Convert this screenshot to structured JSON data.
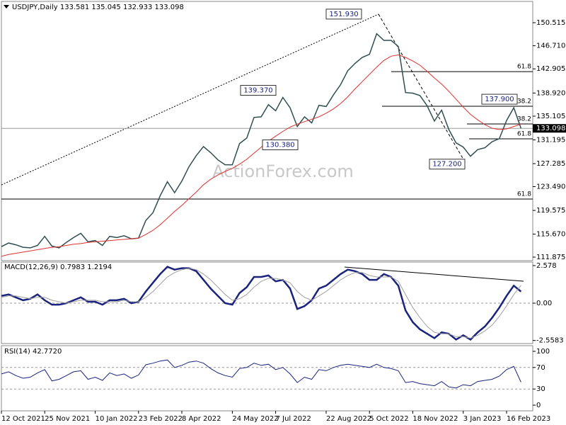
{
  "chart_data": [
    {
      "type": "line",
      "title": "USDJPY,Daily  133.581 135.045 132.933 133.098",
      "watermark": "ActionForex.com",
      "categories": [
        "12 Oct 2021",
        null,
        null,
        null,
        null,
        null,
        "25 Nov 2021",
        null,
        null,
        null,
        null,
        null,
        null,
        "10 Jan 2022",
        null,
        null,
        null,
        null,
        null,
        "23 Feb 2022",
        null,
        null,
        null,
        null,
        null,
        "8 Apr 2022",
        null,
        null,
        null,
        null,
        null,
        null,
        "24 May 2022",
        null,
        null,
        null,
        null,
        null,
        "7 Jul 2022",
        null,
        null,
        null,
        null,
        null,
        null,
        "22 Aug 2022",
        null,
        null,
        null,
        null,
        null,
        "5 Oct 2022",
        null,
        null,
        null,
        null,
        null,
        "18 Nov 2022",
        null,
        null,
        null,
        null,
        null,
        null,
        "3 Jan 2023",
        null,
        null,
        null,
        null,
        null,
        "16 Feb 2023",
        null,
        null
      ],
      "series": [
        {
          "name": "Close",
          "color": "#2f4f4f",
          "values": [
            113.6,
            114.2,
            113.9,
            113.5,
            113.4,
            113.8,
            115.3,
            113.7,
            113.4,
            114.3,
            115.1,
            115.8,
            114.4,
            114.6,
            113.8,
            115.3,
            115.1,
            115.4,
            114.9,
            115.0,
            117.9,
            119.2,
            122.0,
            124.3,
            122.5,
            124.4,
            126.8,
            128.6,
            130.1,
            129.1,
            127.9,
            127.1,
            127.1,
            130.6,
            131.5,
            134.9,
            135.0,
            137.0,
            136.0,
            138.2,
            136.5,
            133.4,
            135.0,
            134.0,
            136.9,
            136.7,
            138.6,
            140.3,
            142.6,
            143.8,
            144.8,
            145.3,
            148.7,
            147.6,
            147.6,
            146.6,
            139.0,
            138.9,
            138.5,
            136.8,
            134.3,
            136.1,
            132.9,
            130.7,
            130.0,
            128.5,
            129.6,
            129.9,
            130.9,
            131.4,
            134.4,
            136.5,
            133.098
          ]
        },
        {
          "name": "MA",
          "color": "#e03030",
          "values": [
            112.0,
            112.3,
            112.5,
            112.7,
            112.9,
            113.1,
            113.3,
            113.5,
            113.6,
            113.8,
            114.0,
            114.1,
            114.3,
            114.4,
            114.5,
            114.6,
            114.7,
            114.8,
            114.9,
            115.0,
            115.6,
            116.3,
            117.2,
            118.3,
            119.4,
            120.4,
            121.5,
            122.6,
            123.8,
            124.7,
            125.4,
            126.0,
            126.5,
            127.2,
            128.0,
            129.0,
            130.0,
            131.0,
            131.8,
            132.6,
            133.3,
            133.8,
            134.2,
            134.6,
            135.0,
            135.6,
            136.3,
            137.2,
            138.3,
            139.6,
            140.8,
            142.0,
            143.2,
            144.3,
            145.0,
            145.2,
            144.8,
            144.2,
            143.5,
            142.5,
            141.4,
            140.4,
            139.2,
            137.9,
            136.6,
            135.4,
            134.5,
            133.7,
            133.1,
            132.9,
            133.0,
            133.4,
            133.8
          ]
        }
      ],
      "current_price": 133.098,
      "levels": [
        {
          "value": 142.45,
          "label": "61.8"
        },
        {
          "value": 136.74,
          "label": "38.2"
        },
        {
          "value": 133.82,
          "label": "38.2"
        },
        {
          "value": 131.37,
          "label": "61.8"
        },
        {
          "value": 121.45,
          "label": "61.8"
        }
      ],
      "annotations": [
        {
          "value": 151.93,
          "label": "151.930"
        },
        {
          "value": 139.37,
          "label": "139.370"
        },
        {
          "value": 130.38,
          "label": "130.380"
        },
        {
          "value": 127.2,
          "label": "127.200"
        },
        {
          "value": 137.9,
          "label": "137.900"
        }
      ],
      "ylim": [
        111.29,
        154.02
      ],
      "yticks": [
        {
          "value": 150.515,
          "label": "150.515"
        },
        {
          "value": 146.71,
          "label": "146.710"
        },
        {
          "value": 142.905,
          "label": "142.905"
        },
        {
          "value": 138.92,
          "label": "138.920"
        },
        {
          "value": 135.105,
          "label": "135.105"
        },
        {
          "value": 131.195,
          "label": "131.195"
        },
        {
          "value": 127.285,
          "label": "127.285"
        },
        {
          "value": 123.49,
          "label": "123.490"
        },
        {
          "value": 119.575,
          "label": "119.575"
        },
        {
          "value": 115.67,
          "label": "115.670"
        },
        {
          "value": 111.875,
          "label": "111.875"
        }
      ]
    },
    {
      "type": "line",
      "title": "MACD(12,26,9) 0.7983 1.2194",
      "series": [
        {
          "name": "MACD",
          "color": "#1a237e",
          "values": [
            0.5,
            0.6,
            0.4,
            0.2,
            0.3,
            0.6,
            0.2,
            -0.1,
            -0.1,
            0.0,
            0.2,
            0.4,
            0.1,
            0.1,
            -0.1,
            0.2,
            0.2,
            0.3,
            0.0,
            0.1,
            0.8,
            1.4,
            2.0,
            2.5,
            2.3,
            2.4,
            2.4,
            2.2,
            1.6,
            1.0,
            0.5,
            0.0,
            -0.1,
            0.7,
            1.1,
            1.8,
            1.8,
            1.9,
            1.5,
            1.6,
            1.0,
            -0.4,
            -0.2,
            0.2,
            1.0,
            1.2,
            1.6,
            2.0,
            2.3,
            2.2,
            2.0,
            1.6,
            1.6,
            2.0,
            1.8,
            1.2,
            -0.5,
            -1.3,
            -1.8,
            -2.1,
            -2.4,
            -2.0,
            -2.1,
            -2.5,
            -2.2,
            -2.5,
            -2.0,
            -1.6,
            -1.0,
            -0.3,
            0.5,
            1.2,
            0.7983
          ]
        },
        {
          "name": "Signal",
          "color": "#a0a0a0",
          "values": [
            0.4,
            0.5,
            0.5,
            0.4,
            0.3,
            0.4,
            0.4,
            0.2,
            0.1,
            0.0,
            0.1,
            0.2,
            0.2,
            0.2,
            0.1,
            0.1,
            0.1,
            0.2,
            0.1,
            0.1,
            0.4,
            0.8,
            1.3,
            1.8,
            2.1,
            2.3,
            2.4,
            2.3,
            2.0,
            1.6,
            1.1,
            0.6,
            0.2,
            0.3,
            0.6,
            1.1,
            1.5,
            1.7,
            1.7,
            1.6,
            1.4,
            0.8,
            0.4,
            0.2,
            0.5,
            0.8,
            1.2,
            1.6,
            1.9,
            2.1,
            2.1,
            1.9,
            1.8,
            1.8,
            1.8,
            1.5,
            0.6,
            -0.3,
            -1.0,
            -1.6,
            -2.0,
            -2.1,
            -2.1,
            -2.3,
            -2.3,
            -2.4,
            -2.2,
            -1.9,
            -1.5,
            -0.9,
            -0.2,
            0.6,
            1.2194
          ]
        }
      ],
      "ylim": [
        -2.77,
        2.82
      ],
      "yticks": [
        2.578,
        {
          "value": 0,
          "label": "0.00"
        },
        -2.5583
      ]
    },
    {
      "type": "line",
      "title": "RSI(14) 42.7720",
      "series": [
        {
          "name": "RSI",
          "color": "#1a237e",
          "values": [
            58,
            62,
            55,
            50,
            52,
            60,
            66,
            45,
            48,
            55,
            62,
            64,
            48,
            52,
            46,
            60,
            55,
            58,
            50,
            56,
            75,
            78,
            82,
            84,
            70,
            74,
            80,
            82,
            78,
            68,
            60,
            55,
            52,
            68,
            70,
            78,
            74,
            76,
            66,
            70,
            58,
            42,
            52,
            48,
            66,
            64,
            70,
            74,
            76,
            74,
            72,
            70,
            76,
            70,
            68,
            64,
            42,
            44,
            40,
            38,
            36,
            44,
            34,
            32,
            38,
            36,
            44,
            46,
            48,
            54,
            66,
            72,
            42.772
          ]
        }
      ],
      "ylim": [
        -10.5,
        110.5
      ],
      "yticks": [
        100,
        70,
        30,
        0
      ]
    }
  ]
}
